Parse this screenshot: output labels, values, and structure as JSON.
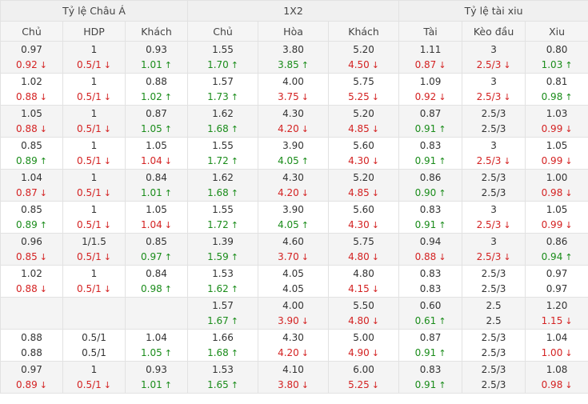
{
  "groups": [
    {
      "label": "Tỷ lệ Châu Á"
    },
    {
      "label": "1X2"
    },
    {
      "label": "Tỷ lệ tài xiu"
    }
  ],
  "columns": [
    "Chủ",
    "HDP",
    "Khách",
    "Chủ",
    "Hòa",
    "Khách",
    "Tài",
    "Kèo đầu",
    "Xiu"
  ],
  "arrows": {
    "up": "↑",
    "down": "↓"
  },
  "colors": {
    "up": "#1a8c1a",
    "down": "#d42222",
    "neutral": "#333333"
  },
  "rows": [
    {
      "cells": [
        {
          "top": "0.97",
          "bottom": {
            "v": "0.92",
            "d": "down"
          }
        },
        {
          "top": "1",
          "bottom": {
            "v": "0.5/1",
            "d": "down"
          }
        },
        {
          "top": "0.93",
          "bottom": {
            "v": "1.01",
            "d": "up"
          }
        },
        {
          "top": "1.55",
          "bottom": {
            "v": "1.70",
            "d": "up"
          }
        },
        {
          "top": "3.80",
          "bottom": {
            "v": "3.85",
            "d": "up"
          }
        },
        {
          "top": "5.20",
          "bottom": {
            "v": "4.50",
            "d": "down"
          }
        },
        {
          "top": "1.11",
          "bottom": {
            "v": "0.87",
            "d": "down"
          }
        },
        {
          "top": "3",
          "bottom": {
            "v": "2.5/3",
            "d": "down"
          }
        },
        {
          "top": "0.80",
          "bottom": {
            "v": "1.03",
            "d": "up"
          }
        }
      ]
    },
    {
      "cells": [
        {
          "top": "1.02",
          "bottom": {
            "v": "0.88",
            "d": "down"
          }
        },
        {
          "top": "1",
          "bottom": {
            "v": "0.5/1",
            "d": "down"
          }
        },
        {
          "top": "0.88",
          "bottom": {
            "v": "1.02",
            "d": "up"
          }
        },
        {
          "top": "1.57",
          "bottom": {
            "v": "1.73",
            "d": "up"
          }
        },
        {
          "top": "4.00",
          "bottom": {
            "v": "3.75",
            "d": "down"
          }
        },
        {
          "top": "5.75",
          "bottom": {
            "v": "5.25",
            "d": "down"
          }
        },
        {
          "top": "1.09",
          "bottom": {
            "v": "0.92",
            "d": "down"
          }
        },
        {
          "top": "3",
          "bottom": {
            "v": "2.5/3",
            "d": "down"
          }
        },
        {
          "top": "0.81",
          "bottom": {
            "v": "0.98",
            "d": "up"
          }
        }
      ]
    },
    {
      "cells": [
        {
          "top": "1.05",
          "bottom": {
            "v": "0.88",
            "d": "down"
          }
        },
        {
          "top": "1",
          "bottom": {
            "v": "0.5/1",
            "d": "down"
          }
        },
        {
          "top": "0.87",
          "bottom": {
            "v": "1.05",
            "d": "up"
          }
        },
        {
          "top": "1.62",
          "bottom": {
            "v": "1.68",
            "d": "up"
          }
        },
        {
          "top": "4.30",
          "bottom": {
            "v": "4.20",
            "d": "down"
          }
        },
        {
          "top": "5.20",
          "bottom": {
            "v": "4.85",
            "d": "down"
          }
        },
        {
          "top": "0.87",
          "bottom": {
            "v": "0.91",
            "d": "up"
          }
        },
        {
          "top": "2.5/3",
          "bottom": {
            "v": "2.5/3",
            "d": ""
          }
        },
        {
          "top": "1.03",
          "bottom": {
            "v": "0.99",
            "d": "down"
          }
        }
      ]
    },
    {
      "cells": [
        {
          "top": "0.85",
          "bottom": {
            "v": "0.89",
            "d": "up"
          }
        },
        {
          "top": "1",
          "bottom": {
            "v": "0.5/1",
            "d": "down"
          }
        },
        {
          "top": "1.05",
          "bottom": {
            "v": "1.04",
            "d": "down"
          }
        },
        {
          "top": "1.55",
          "bottom": {
            "v": "1.72",
            "d": "up"
          }
        },
        {
          "top": "3.90",
          "bottom": {
            "v": "4.05",
            "d": "up"
          }
        },
        {
          "top": "5.60",
          "bottom": {
            "v": "4.30",
            "d": "down"
          }
        },
        {
          "top": "0.83",
          "bottom": {
            "v": "0.91",
            "d": "up"
          }
        },
        {
          "top": "3",
          "bottom": {
            "v": "2.5/3",
            "d": "down"
          }
        },
        {
          "top": "1.05",
          "bottom": {
            "v": "0.99",
            "d": "down"
          }
        }
      ]
    },
    {
      "cells": [
        {
          "top": "1.04",
          "bottom": {
            "v": "0.87",
            "d": "down"
          }
        },
        {
          "top": "1",
          "bottom": {
            "v": "0.5/1",
            "d": "down"
          }
        },
        {
          "top": "0.84",
          "bottom": {
            "v": "1.01",
            "d": "up"
          }
        },
        {
          "top": "1.62",
          "bottom": {
            "v": "1.68",
            "d": "up"
          }
        },
        {
          "top": "4.30",
          "bottom": {
            "v": "4.20",
            "d": "down"
          }
        },
        {
          "top": "5.20",
          "bottom": {
            "v": "4.85",
            "d": "down"
          }
        },
        {
          "top": "0.86",
          "bottom": {
            "v": "0.90",
            "d": "up"
          }
        },
        {
          "top": "2.5/3",
          "bottom": {
            "v": "2.5/3",
            "d": ""
          }
        },
        {
          "top": "1.00",
          "bottom": {
            "v": "0.98",
            "d": "down"
          }
        }
      ]
    },
    {
      "cells": [
        {
          "top": "0.85",
          "bottom": {
            "v": "0.89",
            "d": "up"
          }
        },
        {
          "top": "1",
          "bottom": {
            "v": "0.5/1",
            "d": "down"
          }
        },
        {
          "top": "1.05",
          "bottom": {
            "v": "1.04",
            "d": "down"
          }
        },
        {
          "top": "1.55",
          "bottom": {
            "v": "1.72",
            "d": "up"
          }
        },
        {
          "top": "3.90",
          "bottom": {
            "v": "4.05",
            "d": "up"
          }
        },
        {
          "top": "5.60",
          "bottom": {
            "v": "4.30",
            "d": "down"
          }
        },
        {
          "top": "0.83",
          "bottom": {
            "v": "0.91",
            "d": "up"
          }
        },
        {
          "top": "3",
          "bottom": {
            "v": "2.5/3",
            "d": "down"
          }
        },
        {
          "top": "1.05",
          "bottom": {
            "v": "0.99",
            "d": "down"
          }
        }
      ]
    },
    {
      "cells": [
        {
          "top": "0.96",
          "bottom": {
            "v": "0.85",
            "d": "down"
          }
        },
        {
          "top": "1/1.5",
          "bottom": {
            "v": "0.5/1",
            "d": "down"
          }
        },
        {
          "top": "0.85",
          "bottom": {
            "v": "0.97",
            "d": "up"
          }
        },
        {
          "top": "1.39",
          "bottom": {
            "v": "1.59",
            "d": "up"
          }
        },
        {
          "top": "4.60",
          "bottom": {
            "v": "3.70",
            "d": "down"
          }
        },
        {
          "top": "5.75",
          "bottom": {
            "v": "4.80",
            "d": "down"
          }
        },
        {
          "top": "0.94",
          "bottom": {
            "v": "0.88",
            "d": "down"
          }
        },
        {
          "top": "3",
          "bottom": {
            "v": "2.5/3",
            "d": "down"
          }
        },
        {
          "top": "0.86",
          "bottom": {
            "v": "0.94",
            "d": "up"
          }
        }
      ]
    },
    {
      "cells": [
        {
          "top": "1.02",
          "bottom": {
            "v": "0.88",
            "d": "down"
          }
        },
        {
          "top": "1",
          "bottom": {
            "v": "0.5/1",
            "d": "down"
          }
        },
        {
          "top": "0.84",
          "bottom": {
            "v": "0.98",
            "d": "up"
          }
        },
        {
          "top": "1.53",
          "bottom": {
            "v": "1.62",
            "d": "up"
          }
        },
        {
          "top": "4.05",
          "bottom": {
            "v": "4.05",
            "d": ""
          }
        },
        {
          "top": "4.80",
          "bottom": {
            "v": "4.15",
            "d": "down"
          }
        },
        {
          "top": "0.83",
          "bottom": {
            "v": "0.83",
            "d": ""
          }
        },
        {
          "top": "2.5/3",
          "bottom": {
            "v": "2.5/3",
            "d": ""
          }
        },
        {
          "top": "0.97",
          "bottom": {
            "v": "0.97",
            "d": ""
          }
        }
      ]
    },
    {
      "cells": [
        {
          "top": "",
          "bottom": {
            "v": "",
            "d": ""
          }
        },
        {
          "top": "",
          "bottom": {
            "v": "",
            "d": ""
          }
        },
        {
          "top": "",
          "bottom": {
            "v": "",
            "d": ""
          }
        },
        {
          "top": "1.57",
          "bottom": {
            "v": "1.67",
            "d": "up"
          }
        },
        {
          "top": "4.00",
          "bottom": {
            "v": "3.90",
            "d": "down"
          }
        },
        {
          "top": "5.50",
          "bottom": {
            "v": "4.80",
            "d": "down"
          }
        },
        {
          "top": "0.60",
          "bottom": {
            "v": "0.61",
            "d": "up"
          }
        },
        {
          "top": "2.5",
          "bottom": {
            "v": "2.5",
            "d": ""
          }
        },
        {
          "top": "1.20",
          "bottom": {
            "v": "1.15",
            "d": "down"
          }
        }
      ]
    },
    {
      "cells": [
        {
          "top": "0.88",
          "bottom": {
            "v": "0.88",
            "d": ""
          }
        },
        {
          "top": "0.5/1",
          "bottom": {
            "v": "0.5/1",
            "d": ""
          }
        },
        {
          "top": "1.04",
          "bottom": {
            "v": "1.05",
            "d": "up"
          }
        },
        {
          "top": "1.66",
          "bottom": {
            "v": "1.68",
            "d": "up"
          }
        },
        {
          "top": "4.30",
          "bottom": {
            "v": "4.20",
            "d": "down"
          }
        },
        {
          "top": "5.00",
          "bottom": {
            "v": "4.90",
            "d": "down"
          }
        },
        {
          "top": "0.87",
          "bottom": {
            "v": "0.91",
            "d": "up"
          }
        },
        {
          "top": "2.5/3",
          "bottom": {
            "v": "2.5/3",
            "d": ""
          }
        },
        {
          "top": "1.04",
          "bottom": {
            "v": "1.00",
            "d": "down"
          }
        }
      ]
    },
    {
      "cells": [
        {
          "top": "0.97",
          "bottom": {
            "v": "0.89",
            "d": "down"
          }
        },
        {
          "top": "1",
          "bottom": {
            "v": "0.5/1",
            "d": "down"
          }
        },
        {
          "top": "0.93",
          "bottom": {
            "v": "1.01",
            "d": "up"
          }
        },
        {
          "top": "1.53",
          "bottom": {
            "v": "1.65",
            "d": "up"
          }
        },
        {
          "top": "4.10",
          "bottom": {
            "v": "3.80",
            "d": "down"
          }
        },
        {
          "top": "6.00",
          "bottom": {
            "v": "5.25",
            "d": "down"
          }
        },
        {
          "top": "0.83",
          "bottom": {
            "v": "0.91",
            "d": "up"
          }
        },
        {
          "top": "2.5/3",
          "bottom": {
            "v": "2.5/3",
            "d": ""
          }
        },
        {
          "top": "1.08",
          "bottom": {
            "v": "0.98",
            "d": "down"
          }
        }
      ]
    }
  ]
}
